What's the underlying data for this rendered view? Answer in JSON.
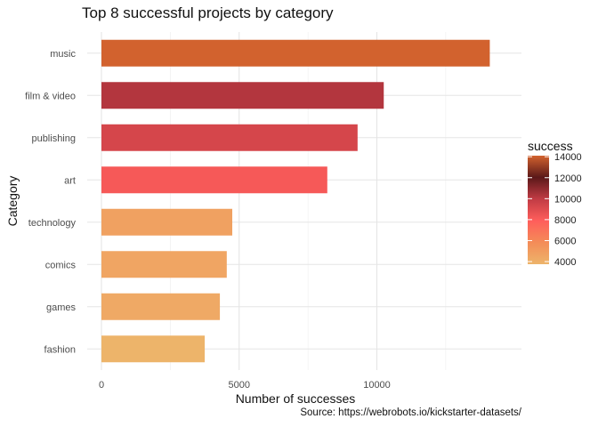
{
  "chart_data": {
    "type": "bar",
    "orientation": "horizontal",
    "title": "Top 8 successful projects by category",
    "xlabel": "Number of successes",
    "ylabel": "Category",
    "caption": "Source: https://webrobots.io/kickstarter-datasets/",
    "categories": [
      "music",
      "film & video",
      "publishing",
      "art",
      "technology",
      "comics",
      "games",
      "fashion"
    ],
    "values": [
      14100,
      10250,
      9300,
      8200,
      4750,
      4550,
      4300,
      3750
    ],
    "xlim": [
      0,
      14800
    ],
    "xticks": [
      0,
      5000,
      10000
    ],
    "grid": true,
    "legend": {
      "title": "success",
      "position": "right",
      "ticks": [
        14000,
        12000,
        10000,
        8000,
        6000,
        4000
      ],
      "range": [
        3750,
        14100
      ],
      "colors": [
        "#edb46a",
        "#f48c58",
        "#ff5e5b",
        "#c13b44",
        "#5b1819",
        "#d2622e"
      ]
    }
  }
}
